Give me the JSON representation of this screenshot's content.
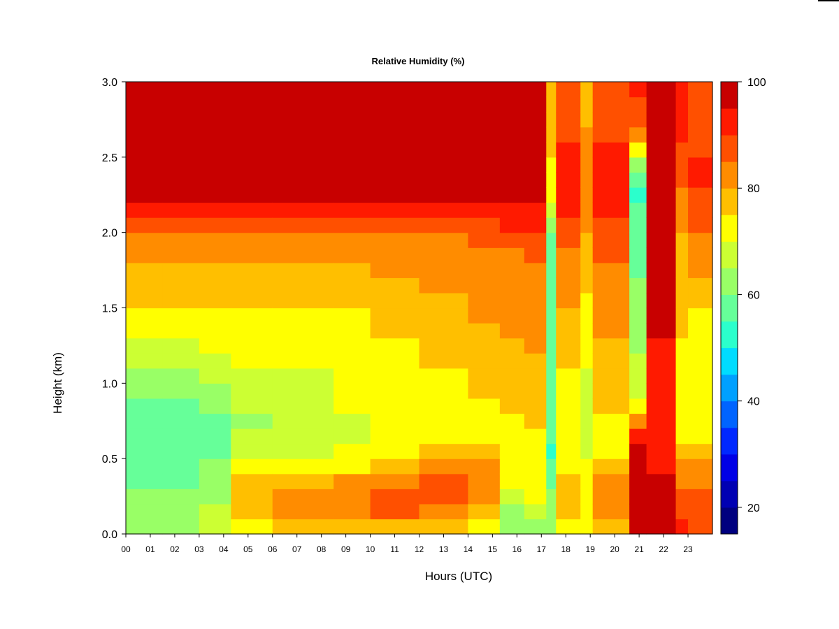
{
  "chart_data": {
    "type": "heatmap",
    "title": "Relative Humidity (%)",
    "xlabel": "Hours (UTC)",
    "ylabel": "Height (km)",
    "xlim": [
      0,
      24
    ],
    "ylim": [
      0.0,
      3.0
    ],
    "x_ticks": [
      "00",
      "01",
      "02",
      "03",
      "04",
      "05",
      "06",
      "07",
      "08",
      "09",
      "10",
      "11",
      "12",
      "13",
      "14",
      "15",
      "16",
      "17",
      "18",
      "19",
      "20",
      "21",
      "22",
      "23"
    ],
    "y_ticks": [
      "0.0",
      "0.5",
      "1.0",
      "1.5",
      "2.0",
      "2.5",
      "3.0"
    ],
    "colorbar": {
      "levels": [
        15,
        20,
        25,
        30,
        35,
        40,
        45,
        50,
        55,
        60,
        65,
        70,
        75,
        80,
        85,
        90,
        95,
        100
      ],
      "colors": [
        "#00007f",
        "#0000b3",
        "#0000e6",
        "#0028ff",
        "#0064ff",
        "#00a0ff",
        "#00dcff",
        "#2bffcc",
        "#66ff99",
        "#99ff66",
        "#ccff33",
        "#ffff00",
        "#ffbf00",
        "#ff8c00",
        "#ff5000",
        "#ff1a00",
        "#c80000",
        "#7f0000"
      ],
      "tick_labels": [
        "20",
        "40",
        "60",
        "80",
        "100"
      ],
      "tick_values": [
        20,
        40,
        60,
        80,
        100
      ]
    },
    "heights_km": [
      0.05,
      0.15,
      0.25,
      0.35,
      0.45,
      0.55,
      0.65,
      0.75,
      0.85,
      0.95,
      1.05,
      1.15,
      1.25,
      1.35,
      1.45,
      1.55,
      1.65,
      1.75,
      1.85,
      1.95,
      2.05,
      2.15,
      2.25,
      2.35,
      2.45,
      2.55,
      2.65,
      2.75,
      2.85,
      2.95
    ],
    "profiles": [
      {
        "hours": [
          0,
          1.5
        ],
        "rh": [
          64,
          62,
          60,
          58,
          56,
          55,
          55,
          56,
          58,
          60,
          62,
          66,
          68,
          70,
          72,
          75,
          76,
          78,
          80,
          82,
          86,
          90,
          97,
          97,
          97,
          97,
          97,
          96,
          96,
          96
        ]
      },
      {
        "hours": [
          1.5,
          3
        ],
        "rh": [
          64,
          62,
          60,
          59,
          57,
          56,
          56,
          57,
          59,
          61,
          63,
          67,
          69,
          70,
          72,
          75,
          76,
          78,
          80,
          82,
          86,
          91,
          98,
          98,
          98,
          98,
          98,
          98,
          98,
          98
        ]
      },
      {
        "hours": [
          3,
          4.3
        ],
        "rh": [
          66,
          65,
          63,
          61,
          60,
          58,
          58,
          59,
          61,
          63,
          65,
          68,
          70,
          70,
          72,
          75,
          76,
          78,
          80,
          82,
          86,
          91,
          99,
          99,
          99,
          99,
          99,
          99,
          99,
          99
        ]
      },
      {
        "hours": [
          4.3,
          6
        ],
        "rh": [
          72,
          76,
          78,
          75,
          70,
          66,
          65,
          64,
          65,
          67,
          69,
          70,
          70,
          71,
          72,
          75,
          77,
          78,
          80,
          82,
          86,
          91,
          99,
          99,
          99,
          99,
          99,
          99,
          99,
          99
        ]
      },
      {
        "hours": [
          6,
          8.5
        ],
        "rh": [
          75,
          80,
          82,
          78,
          72,
          68,
          66,
          65,
          66,
          68,
          69,
          70,
          70,
          71,
          73,
          75,
          77,
          78,
          80,
          83,
          87,
          91,
          99,
          99,
          99,
          99,
          99,
          99,
          99,
          99
        ]
      },
      {
        "hours": [
          8.5,
          10
        ],
        "rh": [
          76,
          80,
          83,
          80,
          74,
          70,
          69,
          69,
          70,
          70,
          70,
          71,
          71,
          72,
          74,
          76,
          78,
          79,
          80,
          83,
          87,
          91,
          99,
          99,
          99,
          99,
          99,
          99,
          99,
          99
        ]
      },
      {
        "hours": [
          10,
          12
        ],
        "rh": [
          78,
          85,
          88,
          84,
          78,
          73,
          71,
          70,
          70,
          71,
          72,
          73,
          74,
          75,
          76,
          78,
          79,
          80,
          81,
          84,
          88,
          92,
          99,
          99,
          99,
          99,
          99,
          99,
          99,
          99
        ]
      },
      {
        "hours": [
          12,
          14
        ],
        "rh": [
          76,
          84,
          89,
          87,
          82,
          76,
          73,
          72,
          72,
          73,
          74,
          75,
          76,
          77,
          78,
          79,
          80,
          81,
          82,
          84,
          88,
          92,
          99,
          99,
          99,
          99,
          99,
          99,
          99,
          99
        ]
      },
      {
        "hours": [
          14,
          15.3
        ],
        "rh": [
          70,
          78,
          83,
          84,
          80,
          76,
          74,
          73,
          74,
          75,
          76,
          77,
          78,
          79,
          80,
          81,
          81,
          82,
          83,
          85,
          89,
          93,
          99,
          99,
          99,
          99,
          99,
          99,
          99,
          99
        ]
      },
      {
        "hours": [
          15.3,
          16.3
        ],
        "rh": [
          60,
          64,
          68,
          72,
          74,
          74,
          74,
          74,
          75,
          76,
          77,
          78,
          79,
          80,
          81,
          82,
          82,
          83,
          84,
          86,
          90,
          93,
          99,
          99,
          99,
          99,
          99,
          99,
          99,
          99
        ]
      },
      {
        "hours": [
          16.3,
          17.2
        ],
        "rh": [
          64,
          68,
          70,
          72,
          73,
          74,
          74,
          75,
          76,
          77,
          78,
          79,
          80,
          80,
          81,
          82,
          83,
          84,
          85,
          87,
          90,
          93,
          99,
          99,
          99,
          99,
          99,
          99,
          99,
          99
        ]
      },
      {
        "hours": [
          17.2,
          17.6
        ],
        "rh": [
          62,
          62,
          60,
          58,
          55,
          54,
          55,
          56,
          57,
          58,
          58,
          58,
          57,
          57,
          56,
          55,
          55,
          55,
          56,
          58,
          62,
          66,
          70,
          72,
          74,
          75,
          76,
          76,
          76,
          76
        ]
      },
      {
        "hours": [
          17.6,
          18.6
        ],
        "rh": [
          70,
          76,
          78,
          76,
          72,
          70,
          70,
          70,
          71,
          72,
          74,
          75,
          76,
          78,
          79,
          80,
          81,
          82,
          83,
          85,
          88,
          92,
          94,
          94,
          92,
          90,
          88,
          88,
          88,
          88
        ]
      },
      {
        "hours": [
          18.6,
          19.1
        ],
        "rh": [
          70,
          72,
          74,
          74,
          70,
          66,
          66,
          66,
          67,
          68,
          69,
          70,
          71,
          72,
          73,
          74,
          75,
          76,
          77,
          78,
          80,
          82,
          84,
          84,
          84,
          82,
          80,
          78,
          78,
          78
        ]
      },
      {
        "hours": [
          19.1,
          20.6
        ],
        "rh": [
          76,
          80,
          82,
          80,
          76,
          74,
          74,
          74,
          75,
          76,
          77,
          78,
          79,
          80,
          81,
          82,
          83,
          84,
          85,
          86,
          88,
          90,
          92,
          92,
          92,
          90,
          88,
          88,
          88,
          88
        ]
      },
      {
        "hours": [
          20.6,
          21.3
        ],
        "rh": [
          99,
          99,
          99,
          98,
          98,
          95,
          90,
          82,
          72,
          68,
          66,
          66,
          64,
          62,
          62,
          60,
          60,
          58,
          58,
          58,
          56,
          55,
          54,
          56,
          60,
          70,
          80,
          86,
          88,
          90
        ]
      },
      {
        "hours": [
          21.3,
          22.5
        ],
        "rh": [
          98,
          97,
          97,
          96,
          94,
          92,
          92,
          92,
          93,
          93,
          94,
          94,
          94,
          95,
          95,
          95,
          96,
          96,
          96,
          96,
          96,
          96,
          97,
          97,
          97,
          97,
          97,
          97,
          97,
          97
        ]
      },
      {
        "hours": [
          22.5,
          23
        ],
        "rh": [
          90,
          88,
          86,
          84,
          80,
          76,
          74,
          72,
          72,
          72,
          73,
          74,
          74,
          75,
          75,
          76,
          76,
          77,
          77,
          78,
          80,
          82,
          84,
          86,
          88,
          89,
          90,
          90,
          90,
          90
        ]
      },
      {
        "hours": [
          23,
          24
        ],
        "rh": [
          88,
          86,
          86,
          84,
          82,
          78,
          74,
          72,
          71,
          70,
          71,
          72,
          72,
          73,
          74,
          76,
          78,
          80,
          82,
          84,
          86,
          88,
          89,
          90,
          90,
          89,
          88,
          88,
          88,
          88
        ]
      }
    ]
  }
}
